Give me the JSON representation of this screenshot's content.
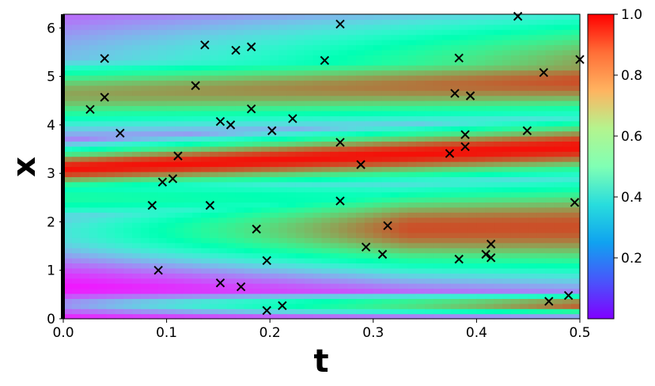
{
  "chart_data": {
    "type": "heatmap",
    "title": "",
    "xlabel": "t",
    "ylabel": "x",
    "xlim": [
      0.0,
      0.5
    ],
    "ylim": [
      0.0,
      6.283
    ],
    "x_ticks": [
      0.0,
      0.1,
      0.2,
      0.3,
      0.4,
      0.5
    ],
    "x_tick_labels": [
      "0.0",
      "0.1",
      "0.2",
      "0.3",
      "0.4",
      "0.5"
    ],
    "y_ticks": [
      0,
      1,
      2,
      3,
      4,
      5,
      6
    ],
    "y_tick_labels": [
      "0",
      "1",
      "2",
      "3",
      "4",
      "5",
      "6"
    ],
    "colormap": "rainbow",
    "colorbar": {
      "range": [
        0.0,
        1.0
      ],
      "ticks": [
        0.2,
        0.4,
        0.6,
        0.8,
        1.0
      ],
      "tick_labels": [
        "0.2",
        "0.4",
        "0.6",
        "0.8",
        "1.0"
      ]
    },
    "grid": false,
    "field_description_values": {
      "t0_peak_x": 3.1,
      "high_band_center_x": 3.5,
      "secondary_band_center_x": 1.8,
      "upper_band_center_x": 5.0
    },
    "markers": {
      "symbol": "x",
      "color": "#000000",
      "points": [
        [
          0.026,
          4.32
        ],
        [
          0.04,
          5.37
        ],
        [
          0.04,
          4.57
        ],
        [
          0.055,
          3.83
        ],
        [
          0.086,
          2.34
        ],
        [
          0.092,
          1.0
        ],
        [
          0.096,
          2.82
        ],
        [
          0.106,
          2.89
        ],
        [
          0.111,
          3.36
        ],
        [
          0.128,
          4.81
        ],
        [
          0.137,
          5.65
        ],
        [
          0.142,
          2.34
        ],
        [
          0.152,
          4.07
        ],
        [
          0.152,
          0.74
        ],
        [
          0.162,
          4.0
        ],
        [
          0.167,
          5.54
        ],
        [
          0.172,
          0.66
        ],
        [
          0.182,
          5.61
        ],
        [
          0.182,
          4.33
        ],
        [
          0.187,
          1.85
        ],
        [
          0.197,
          1.2
        ],
        [
          0.197,
          0.17
        ],
        [
          0.202,
          3.88
        ],
        [
          0.212,
          0.27
        ],
        [
          0.222,
          4.13
        ],
        [
          0.253,
          5.33
        ],
        [
          0.268,
          6.08
        ],
        [
          0.268,
          3.64
        ],
        [
          0.268,
          2.43
        ],
        [
          0.288,
          3.18
        ],
        [
          0.293,
          1.48
        ],
        [
          0.309,
          1.33
        ],
        [
          0.314,
          1.92
        ],
        [
          0.374,
          3.41
        ],
        [
          0.379,
          4.65
        ],
        [
          0.383,
          5.38
        ],
        [
          0.383,
          1.23
        ],
        [
          0.389,
          3.8
        ],
        [
          0.389,
          3.55
        ],
        [
          0.394,
          4.6
        ],
        [
          0.409,
          1.33
        ],
        [
          0.414,
          1.54
        ],
        [
          0.414,
          1.26
        ],
        [
          0.44,
          6.24
        ],
        [
          0.449,
          3.88
        ],
        [
          0.465,
          5.08
        ],
        [
          0.47,
          0.36
        ],
        [
          0.489,
          0.48
        ],
        [
          0.495,
          2.4
        ],
        [
          0.5,
          5.35
        ]
      ]
    }
  }
}
